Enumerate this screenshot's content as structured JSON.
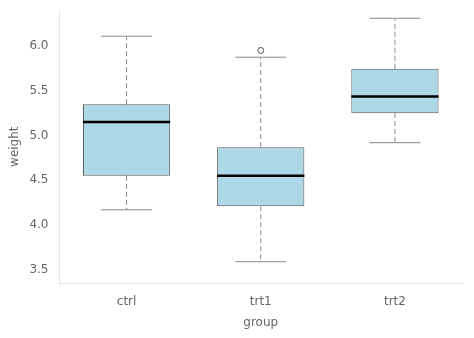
{
  "chart_data": {
    "type": "box",
    "categories": [
      "ctrl",
      "trt1",
      "trt2"
    ],
    "xlabel": "group",
    "ylabel": "weight",
    "q1": [
      4.55,
      4.21,
      5.25
    ],
    "median": [
      5.15,
      4.55,
      5.435
    ],
    "q3": [
      5.35,
      4.87,
      5.745
    ],
    "whisker_low": [
      4.17,
      3.59,
      4.92
    ],
    "whisker_high": [
      6.11,
      5.875,
      6.31
    ],
    "outliers": [
      [],
      [
        5.95
      ],
      []
    ],
    "color": "#add8e6",
    "ylim": [
      3.35,
      6.4
    ],
    "yticks": [
      3.5,
      {
        "value": 4,
        "label": "4.0"
      },
      4.5,
      {
        "value": 5,
        "label": "5.0"
      },
      5.5,
      {
        "value": 6,
        "label": "6.0"
      }
    ],
    "grid": false
  }
}
